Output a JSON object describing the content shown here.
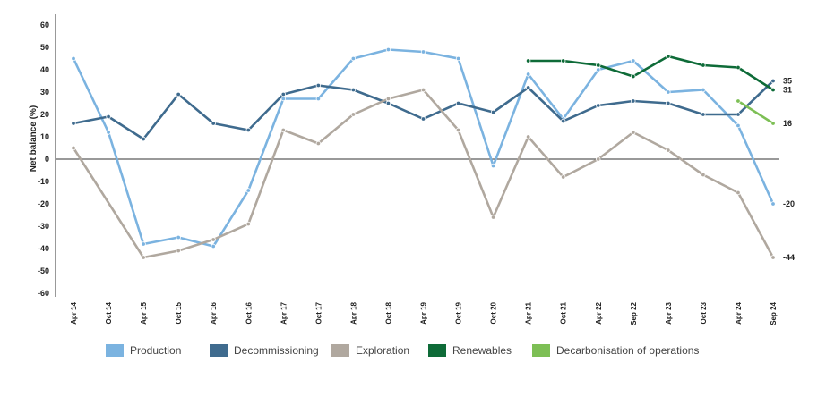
{
  "chart_data": {
    "type": "line",
    "title": "",
    "xlabel": "",
    "ylabel": "Net balance (%)",
    "ylim": [
      -60,
      60
    ],
    "yticks": [
      60,
      50,
      40,
      30,
      20,
      10,
      0,
      -10,
      -20,
      -30,
      -40,
      -50,
      -60
    ],
    "grid": false,
    "legend_position": "bottom",
    "categories": [
      "Apr 14",
      "Oct 14",
      "Apr 15",
      "Oct 15",
      "Apr 16",
      "Oct 16",
      "Apr 17",
      "Oct 17",
      "Apr 18",
      "Oct 18",
      "Apr 19",
      "Oct 19",
      "Oct 20",
      "Apr 21",
      "Oct 21",
      "Apr 22",
      "Sep 22",
      "Apr 23",
      "Oct 23",
      "Apr 24",
      "Sep 24"
    ],
    "series": [
      {
        "name": "Production",
        "color": "#7bb3e0",
        "values": [
          45,
          12,
          -38,
          -35,
          -39,
          -14,
          27,
          27,
          45,
          49,
          48,
          45,
          -3,
          38,
          18,
          40,
          44,
          30,
          31,
          15,
          -20
        ]
      },
      {
        "name": "Decommissioning",
        "color": "#3f6b8e",
        "values": [
          16,
          19,
          9,
          29,
          16,
          13,
          29,
          33,
          31,
          25,
          18,
          25,
          21,
          32,
          17,
          24,
          26,
          25,
          20,
          20,
          35
        ]
      },
      {
        "name": "Exploration",
        "color": "#b0a89f",
        "values": [
          5,
          null,
          -44,
          -41,
          -36,
          -29,
          13,
          7,
          20,
          27,
          31,
          13,
          -26,
          10,
          -8,
          0,
          12,
          4,
          -7,
          -15,
          -44
        ]
      },
      {
        "name": "Renewables",
        "color": "#0e6b38",
        "values": [
          null,
          null,
          null,
          null,
          null,
          null,
          null,
          null,
          null,
          null,
          null,
          null,
          null,
          44,
          44,
          42,
          37,
          46,
          42,
          41,
          31
        ]
      },
      {
        "name": "Decarbonisation of operations",
        "color": "#7dbf55",
        "values": [
          null,
          null,
          null,
          null,
          null,
          null,
          null,
          null,
          null,
          null,
          null,
          null,
          null,
          null,
          null,
          null,
          null,
          null,
          null,
          26,
          16
        ]
      }
    ],
    "end_labels": [
      {
        "text": "35",
        "value": 35
      },
      {
        "text": "31",
        "value": 31
      },
      {
        "text": "16",
        "value": 16
      },
      {
        "text": "-20",
        "value": -20
      },
      {
        "text": "-44",
        "value": -44
      }
    ]
  }
}
